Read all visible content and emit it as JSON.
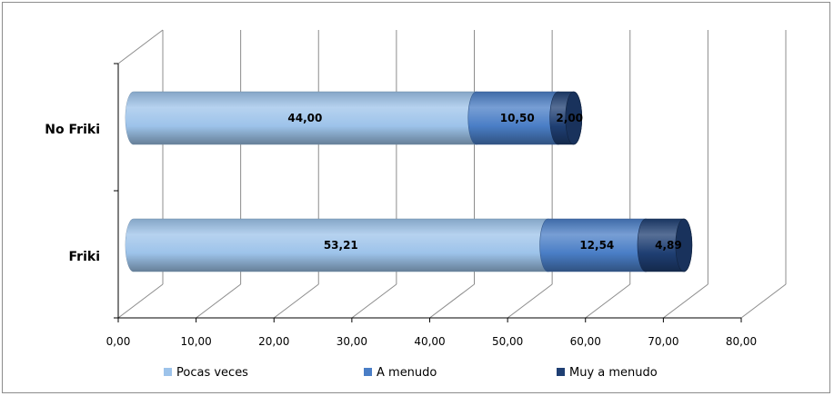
{
  "chart_data": {
    "type": "bar",
    "orientation": "horizontal",
    "stacked": true,
    "style": "3d-cylinder",
    "categories": [
      "No Friki",
      "Friki"
    ],
    "series": [
      {
        "name": "Pocas veces",
        "values": [
          44.0,
          53.21
        ],
        "labels": [
          "44,00",
          "53,21"
        ],
        "color": "#9dc3ea"
      },
      {
        "name": "A menudo",
        "values": [
          10.5,
          12.54
        ],
        "labels": [
          "10,50",
          "12,54"
        ],
        "color": "#4a7ec6"
      },
      {
        "name": "Muy a menudo",
        "values": [
          2.0,
          4.89
        ],
        "labels": [
          "2,00",
          "4,89"
        ],
        "color": "#1f3f73"
      }
    ],
    "xlim": [
      0,
      80
    ],
    "ticks": [
      0,
      10,
      20,
      30,
      40,
      50,
      60,
      70,
      80
    ],
    "tick_labels": [
      "0,00",
      "10,00",
      "20,00",
      "30,00",
      "40,00",
      "50,00",
      "60,00",
      "70,00",
      "80,00"
    ],
    "grid": true,
    "legend": "bottom",
    "colors": {
      "grid": "#8c8c8c",
      "frame": "#8c8c8c",
      "axis": "#000000"
    }
  }
}
